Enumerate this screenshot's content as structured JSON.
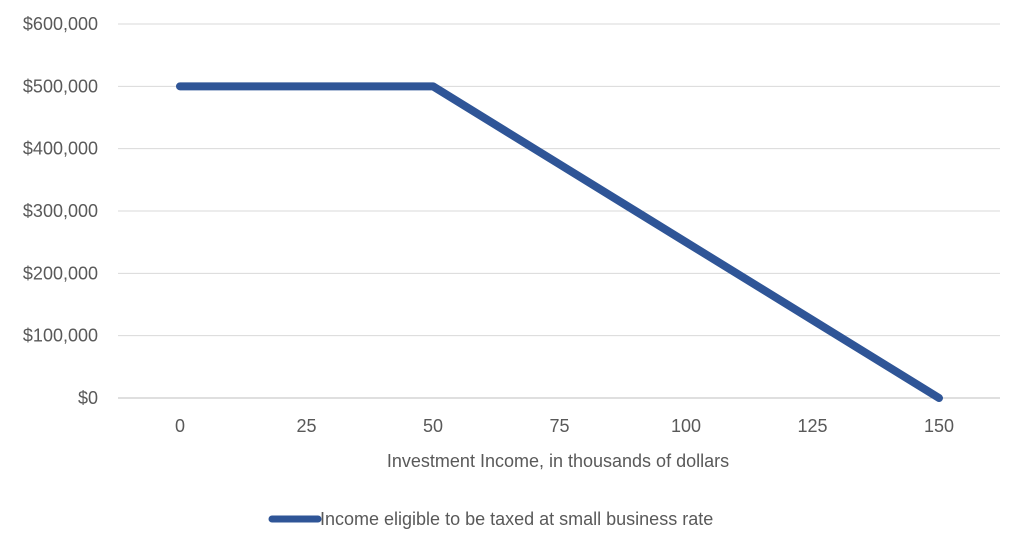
{
  "chart_data": {
    "type": "line",
    "title": "",
    "xlabel": "Investment Income, in thousands of dollars",
    "ylabel": "",
    "categories": [
      "0",
      "25",
      "50",
      "75",
      "100",
      "125",
      "150"
    ],
    "y_ticks": [
      "$0",
      "$100,000",
      "$200,000",
      "$300,000",
      "$400,000",
      "$500,000",
      "$600,000"
    ],
    "ylim": [
      0,
      600000
    ],
    "grid": true,
    "legend_position": "bottom",
    "series": [
      {
        "name": "Income eligible to be taxed at small business rate",
        "color": "#2F5597",
        "values": [
          500000,
          500000,
          500000,
          375000,
          250000,
          125000,
          0
        ]
      }
    ]
  }
}
